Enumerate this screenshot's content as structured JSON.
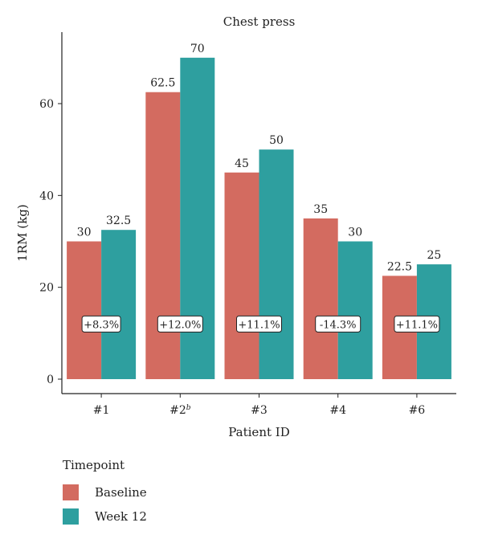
{
  "chart_data": {
    "type": "bar",
    "title": "Chest press",
    "xlabel": "Patient ID",
    "ylabel": "1RM (kg)",
    "ylim": [
      0,
      77
    ],
    "yticks": [
      0,
      20,
      40,
      60
    ],
    "categories": [
      "#1",
      "#2",
      "#3",
      "#4",
      "#6"
    ],
    "category_superscripts": [
      "",
      "b",
      "",
      "",
      ""
    ],
    "series": [
      {
        "name": "Baseline",
        "color": "#d36b60",
        "values": [
          30,
          62.5,
          45,
          35,
          22.5
        ],
        "labels": [
          "30",
          "62.5",
          "45",
          "35",
          "22.5"
        ]
      },
      {
        "name": "Week 12",
        "color": "#2e9f9f",
        "values": [
          32.5,
          70,
          50,
          30,
          25
        ],
        "labels": [
          "32.5",
          "70",
          "50",
          "30",
          "25"
        ]
      }
    ],
    "change_labels": [
      "+8.3%",
      "+12.0%",
      "+11.1%",
      "-14.3%",
      "+11.1%"
    ],
    "change_label_y": 12,
    "grid": false,
    "legend_position": "bottom-left"
  },
  "legend": {
    "title": "Timepoint",
    "items": [
      {
        "label": "Baseline",
        "color": "#d36b60"
      },
      {
        "label": "Week 12",
        "color": "#2e9f9f"
      }
    ]
  }
}
